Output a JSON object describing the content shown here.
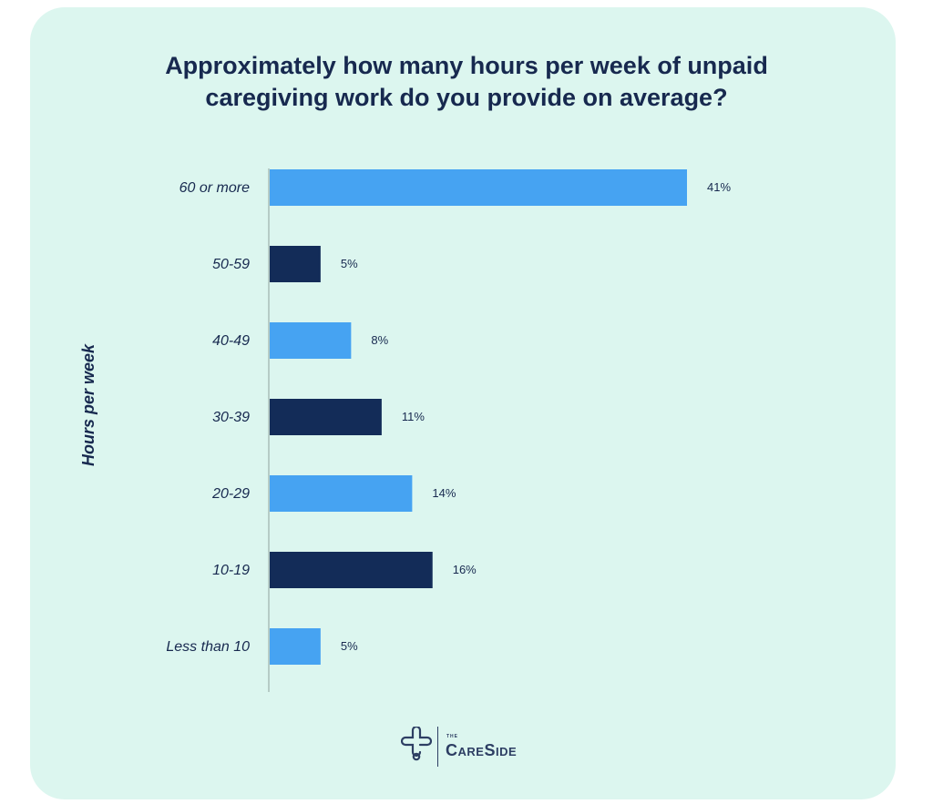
{
  "title_lines": [
    "Approximately how many hours per week of unpaid",
    "caregiving work do you provide on average?"
  ],
  "colors": {
    "light": "#46a3f2",
    "dark": "#132c58",
    "text": "#17294f"
  },
  "chart_data": {
    "type": "bar",
    "orientation": "horizontal",
    "title": "Approximately how many hours per week of unpaid caregiving work do you provide on average?",
    "ylabel": "Hours per week",
    "xlabel": "",
    "categories": [
      "60 or more",
      "50-59",
      "40-49",
      "30-39",
      "20-29",
      "10-19",
      "Less than 10"
    ],
    "values": [
      41,
      5,
      8,
      11,
      14,
      16,
      5
    ],
    "value_labels": [
      "41%",
      "5%",
      "8%",
      "11%",
      "14%",
      "16%",
      "5%"
    ],
    "bar_colors": [
      "light",
      "dark",
      "light",
      "dark",
      "light",
      "dark",
      "light"
    ],
    "xlim": [
      0,
      41
    ]
  },
  "logo": {
    "small": "THE",
    "name": "CareSide"
  }
}
